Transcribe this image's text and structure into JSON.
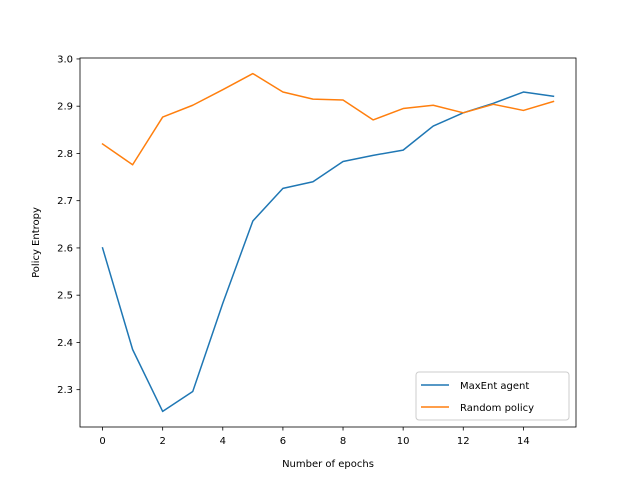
{
  "chart_data": {
    "type": "line",
    "title": "",
    "xlabel": "Number of epochs",
    "ylabel": "Policy Entropy",
    "xlim": [
      -0.75,
      15.75
    ],
    "ylim": [
      2.221,
      3.002
    ],
    "xticks": [
      0,
      2,
      4,
      6,
      8,
      10,
      12,
      14
    ],
    "yticks": [
      2.3,
      2.4,
      2.5,
      2.6,
      2.7,
      2.8,
      2.9,
      3.0
    ],
    "xtick_labels": [
      "0",
      "2",
      "4",
      "6",
      "8",
      "10",
      "12",
      "14"
    ],
    "ytick_labels": [
      "2.3",
      "2.4",
      "2.5",
      "2.6",
      "2.7",
      "2.8",
      "2.9",
      "3.0"
    ],
    "grid": false,
    "legend_position": "lower-right",
    "x": [
      0,
      1,
      2,
      3,
      4,
      5,
      6,
      7,
      8,
      9,
      10,
      11,
      12,
      13,
      14,
      15
    ],
    "series": [
      {
        "name": "MaxEnt agent",
        "color": "#1f77b4",
        "values": [
          2.6,
          2.385,
          2.254,
          2.296,
          2.483,
          2.657,
          2.726,
          2.74,
          2.783,
          2.796,
          2.807,
          2.858,
          2.886,
          2.906,
          2.93,
          2.921
        ]
      },
      {
        "name": "Random policy",
        "color": "#ff7f0e",
        "values": [
          2.82,
          2.776,
          2.877,
          2.902,
          2.935,
          2.969,
          2.93,
          2.915,
          2.913,
          2.871,
          2.895,
          2.902,
          2.886,
          2.904,
          2.891,
          2.91
        ]
      }
    ]
  }
}
